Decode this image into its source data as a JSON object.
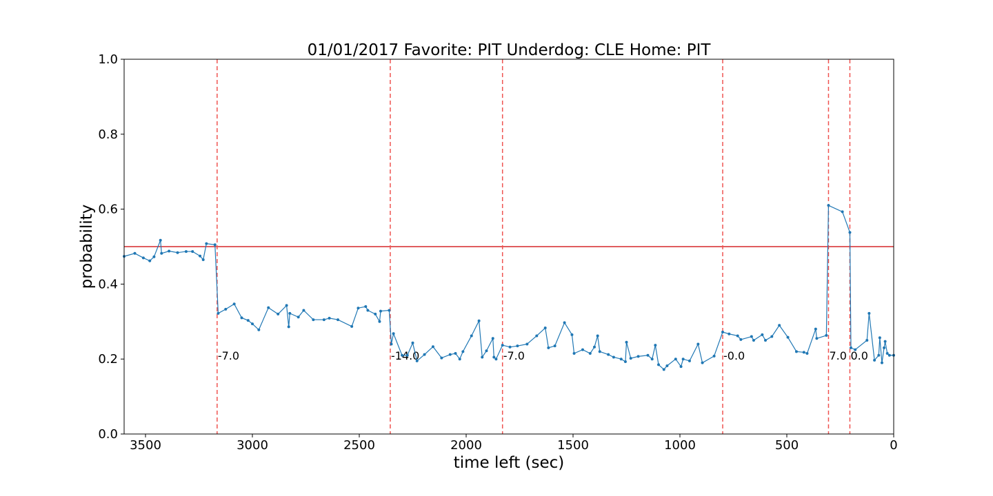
{
  "chart_data": {
    "type": "line",
    "title": "01/01/2017 Favorite: PIT Underdog: CLE Home: PIT",
    "x_label": "time left (sec)",
    "y_label": "probability",
    "color": "#1f77b4",
    "x": [
      3600,
      3550,
      3510,
      3480,
      3460,
      3430,
      3425,
      3390,
      3350,
      3310,
      3280,
      3245,
      3230,
      3215,
      3175,
      3160,
      3125,
      3085,
      3050,
      3020,
      3000,
      2970,
      2925,
      2880,
      2840,
      2830,
      2825,
      2785,
      2760,
      2715,
      2665,
      2640,
      2600,
      2535,
      2505,
      2470,
      2460,
      2425,
      2405,
      2400,
      2360,
      2350,
      2340,
      2300,
      2275,
      2250,
      2230,
      2195,
      2155,
      2115,
      2075,
      2050,
      2030,
      2015,
      1975,
      1940,
      1925,
      1905,
      1875,
      1870,
      1860,
      1830,
      1795,
      1760,
      1715,
      1670,
      1630,
      1615,
      1585,
      1540,
      1505,
      1495,
      1455,
      1420,
      1400,
      1385,
      1375,
      1335,
      1310,
      1275,
      1255,
      1250,
      1230,
      1195,
      1150,
      1130,
      1115,
      1100,
      1075,
      1060,
      1020,
      995,
      985,
      955,
      915,
      895,
      840,
      800,
      770,
      730,
      715,
      665,
      655,
      615,
      600,
      570,
      535,
      495,
      455,
      420,
      405,
      365,
      360,
      315,
      305,
      240,
      205,
      200,
      180,
      125,
      115,
      90,
      70,
      65,
      55,
      45,
      40,
      30,
      20,
      0
    ],
    "values": [
      0.474,
      0.482,
      0.47,
      0.462,
      0.473,
      0.517,
      0.482,
      0.488,
      0.484,
      0.487,
      0.487,
      0.475,
      0.465,
      0.508,
      0.505,
      0.322,
      0.333,
      0.347,
      0.31,
      0.303,
      0.294,
      0.278,
      0.337,
      0.32,
      0.343,
      0.286,
      0.322,
      0.312,
      0.33,
      0.305,
      0.305,
      0.309,
      0.305,
      0.287,
      0.336,
      0.34,
      0.33,
      0.32,
      0.3,
      0.328,
      0.33,
      0.24,
      0.268,
      0.21,
      0.21,
      0.243,
      0.195,
      0.212,
      0.233,
      0.203,
      0.212,
      0.215,
      0.2,
      0.22,
      0.262,
      0.302,
      0.205,
      0.222,
      0.255,
      0.205,
      0.2,
      0.237,
      0.232,
      0.235,
      0.24,
      0.262,
      0.283,
      0.23,
      0.235,
      0.297,
      0.265,
      0.215,
      0.225,
      0.215,
      0.232,
      0.262,
      0.22,
      0.212,
      0.205,
      0.2,
      0.193,
      0.245,
      0.202,
      0.207,
      0.21,
      0.2,
      0.237,
      0.185,
      0.172,
      0.182,
      0.2,
      0.18,
      0.2,
      0.195,
      0.24,
      0.19,
      0.208,
      0.272,
      0.267,
      0.262,
      0.252,
      0.26,
      0.25,
      0.265,
      0.25,
      0.26,
      0.29,
      0.258,
      0.22,
      0.218,
      0.215,
      0.28,
      0.255,
      0.263,
      0.61,
      0.593,
      0.538,
      0.23,
      0.225,
      0.25,
      0.322,
      0.197,
      0.21,
      0.257,
      0.19,
      0.23,
      0.247,
      0.215,
      0.21,
      0.21
    ],
    "hline": {
      "y": 0.5,
      "color": "#d62728"
    },
    "vlines_color": "#ef5350",
    "vlines": [
      {
        "x": 3165,
        "label": "-7.0"
      },
      {
        "x": 2355,
        "label": "-14.0"
      },
      {
        "x": 1830,
        "label": "-7.0"
      },
      {
        "x": 800,
        "label": "-0.0"
      },
      {
        "x": 305,
        "label": "7.0"
      },
      {
        "x": 205,
        "label": "0.0"
      }
    ],
    "xlim": [
      3600,
      0
    ],
    "ylim": [
      0,
      1
    ],
    "xticks": [
      3500,
      3000,
      2500,
      2000,
      1500,
      1000,
      500,
      0
    ],
    "yticks": [
      {
        "value": 0,
        "label": "0.0"
      },
      {
        "value": 0.2,
        "label": "0.2"
      },
      {
        "value": 0.4,
        "label": "0.4"
      },
      {
        "value": 0.6,
        "label": "0.6"
      },
      {
        "value": 0.8,
        "label": "0.8"
      },
      {
        "value": 1,
        "label": "1.0"
      }
    ]
  }
}
